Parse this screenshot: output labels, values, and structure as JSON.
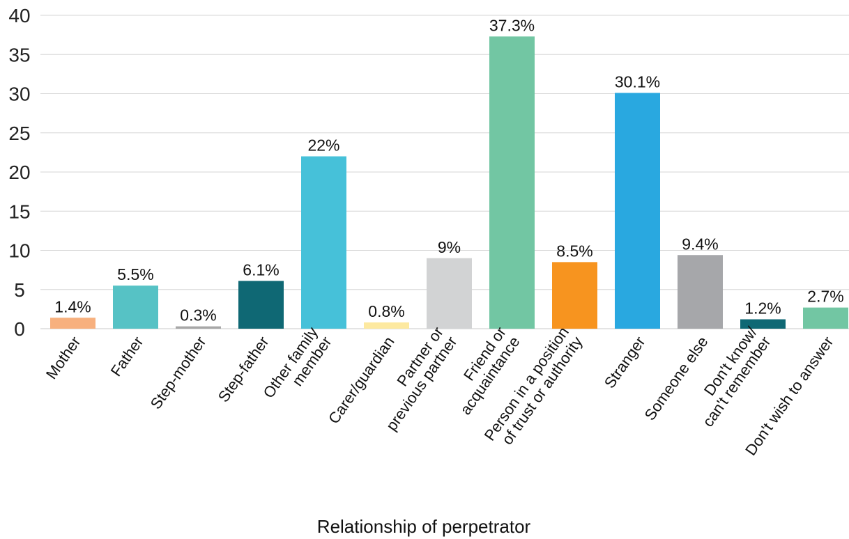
{
  "chart_data": {
    "type": "bar",
    "title": "",
    "xlabel": "Relationship of perpetrator",
    "ylabel": "",
    "ylim": [
      0,
      40
    ],
    "yticks": [
      0,
      5,
      10,
      15,
      20,
      25,
      30,
      35,
      40
    ],
    "grid": true,
    "categories": [
      [
        "Mother"
      ],
      [
        "Father"
      ],
      [
        "Step-mother"
      ],
      [
        "Step-father"
      ],
      [
        "Other family",
        "member"
      ],
      [
        "Carer/guardian"
      ],
      [
        "Partner or",
        "previous partner"
      ],
      [
        "Friend or",
        "acquaintance"
      ],
      [
        "Person in a position",
        "of trust or authority"
      ],
      [
        "Stranger"
      ],
      [
        "Someone else"
      ],
      [
        "Don't know/",
        "can't remember"
      ],
      [
        "Don't wish to answer"
      ]
    ],
    "values": [
      1.4,
      5.5,
      0.3,
      6.1,
      22,
      0.8,
      9,
      37.3,
      8.5,
      30.1,
      9.4,
      1.2,
      2.7
    ],
    "value_labels": [
      "1.4%",
      "5.5%",
      "0.3%",
      "6.1%",
      "22%",
      "0.8%",
      "9%",
      "37.3%",
      "8.5%",
      "30.1%",
      "9.4%",
      "1.2%",
      "2.7%"
    ],
    "colors": [
      "#f7b07e",
      "#56c2c5",
      "#a7a7a7",
      "#0f6874",
      "#46c1d9",
      "#fde9a0",
      "#d2d3d4",
      "#72c6a3",
      "#f7941f",
      "#29a8e0",
      "#a6a7aa",
      "#0f6874",
      "#72c6a3"
    ]
  }
}
